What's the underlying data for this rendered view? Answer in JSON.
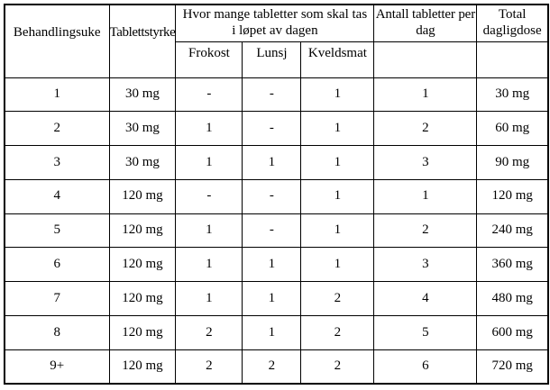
{
  "page": {
    "background_color": "#ffffff",
    "border_color": "#000000",
    "text_color": "#000000"
  },
  "table": {
    "column_headers": {
      "week": "Behandlingsuke",
      "strength": "Tablettstyrke",
      "intake_group": "Hvor mange tabletter som skal tas i løpet av dagen",
      "breakfast": "Frokost",
      "lunch": "Lunsj",
      "supper": "Kveldsmat",
      "tablets_per_day": "Antall tabletter per dag",
      "total_daily_dose": "Total dagligdose"
    },
    "rows": [
      {
        "week": "1",
        "strength": "30 mg",
        "breakfast": "-",
        "lunch": "-",
        "supper": "1",
        "tablets_per_day": "1",
        "total_daily_dose": "30 mg"
      },
      {
        "week": "2",
        "strength": "30 mg",
        "breakfast": "1",
        "lunch": "-",
        "supper": "1",
        "tablets_per_day": "2",
        "total_daily_dose": "60 mg"
      },
      {
        "week": "3",
        "strength": "30 mg",
        "breakfast": "1",
        "lunch": "1",
        "supper": "1",
        "tablets_per_day": "3",
        "total_daily_dose": "90 mg"
      },
      {
        "week": "4",
        "strength": "120 mg",
        "breakfast": "-",
        "lunch": "-",
        "supper": "1",
        "tablets_per_day": "1",
        "total_daily_dose": "120 mg"
      },
      {
        "week": "5",
        "strength": "120 mg",
        "breakfast": "1",
        "lunch": "-",
        "supper": "1",
        "tablets_per_day": "2",
        "total_daily_dose": "240 mg"
      },
      {
        "week": "6",
        "strength": "120 mg",
        "breakfast": "1",
        "lunch": "1",
        "supper": "1",
        "tablets_per_day": "3",
        "total_daily_dose": "360 mg"
      },
      {
        "week": "7",
        "strength": "120 mg",
        "breakfast": "1",
        "lunch": "1",
        "supper": "2",
        "tablets_per_day": "4",
        "total_daily_dose": "480 mg"
      },
      {
        "week": "8",
        "strength": "120 mg",
        "breakfast": "2",
        "lunch": "1",
        "supper": "2",
        "tablets_per_day": "5",
        "total_daily_dose": "600 mg"
      },
      {
        "week": "9+",
        "strength": "120 mg",
        "breakfast": "2",
        "lunch": "2",
        "supper": "2",
        "tablets_per_day": "6",
        "total_daily_dose": "720 mg"
      }
    ],
    "column_order": [
      "week",
      "strength",
      "breakfast",
      "lunch",
      "supper",
      "tablets_per_day",
      "total_daily_dose"
    ]
  }
}
